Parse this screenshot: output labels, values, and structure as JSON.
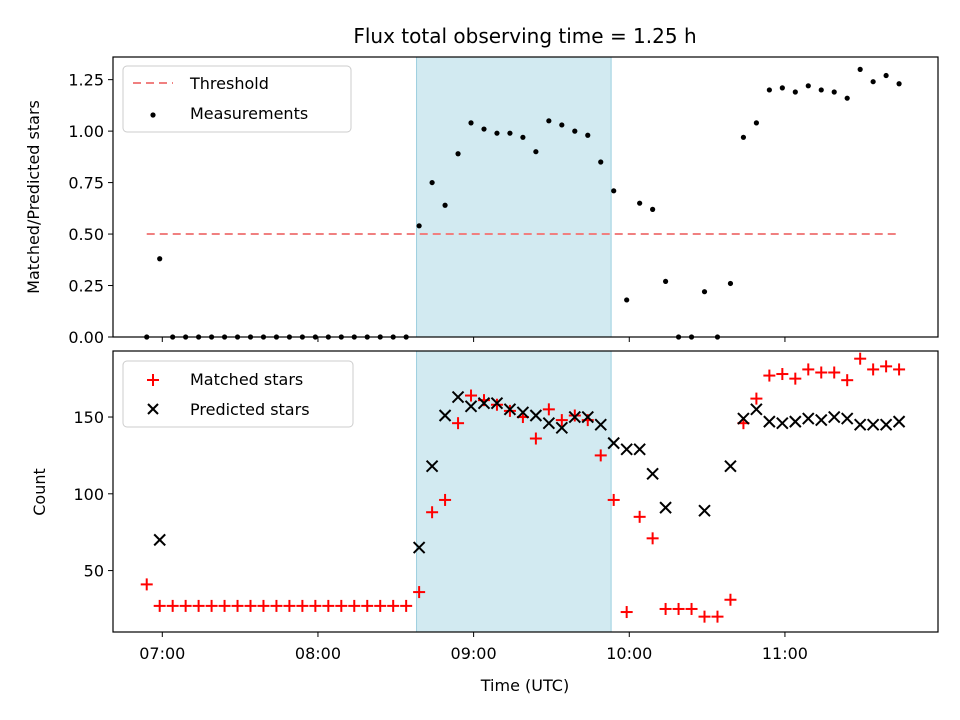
{
  "chart_data": [
    {
      "type": "scatter",
      "title": "Flux total observing time = 1.25 h",
      "xlabel": "",
      "ylabel": "Matched/Predicted stars",
      "ylim": [
        0,
        1.36
      ],
      "yticks": [
        "0.00",
        "0.25",
        "0.50",
        "0.75",
        "1.00",
        "1.25"
      ],
      "ytick_values": [
        0,
        0.25,
        0.5,
        0.75,
        1.0,
        1.25
      ],
      "xlim": [
        "06:41",
        "11:59"
      ],
      "xticks": [
        "07:00",
        "08:00",
        "09:00",
        "10:00",
        "11:00"
      ],
      "shaded_region": {
        "start": "08:38",
        "end": "09:53",
        "color": "#add8e6"
      },
      "legend": {
        "position": "upper-left"
      },
      "series": [
        {
          "name": "Threshold",
          "kind": "dashed-line",
          "color": "#f08080",
          "x": [
            "06:54",
            "11:44"
          ],
          "values": [
            0.5,
            0.5
          ]
        },
        {
          "name": "Measurements",
          "kind": "points",
          "color": "#000000",
          "x": [
            "06:54",
            "06:59",
            "07:04",
            "07:09",
            "07:14",
            "07:19",
            "07:24",
            "07:29",
            "07:34",
            "07:39",
            "07:44",
            "07:49",
            "07:54",
            "07:59",
            "08:04",
            "08:09",
            "08:14",
            "08:19",
            "08:24",
            "08:29",
            "08:34",
            "08:39",
            "08:44",
            "08:49",
            "08:54",
            "08:59",
            "09:04",
            "09:09",
            "09:14",
            "09:19",
            "09:24",
            "09:29",
            "09:34",
            "09:39",
            "09:44",
            "09:49",
            "09:54",
            "09:59",
            "10:04",
            "10:09",
            "10:14",
            "10:19",
            "10:24",
            "10:29",
            "10:34",
            "10:39",
            "10:44",
            "10:49",
            "10:54",
            "10:59",
            "11:04",
            "11:09",
            "11:14",
            "11:19",
            "11:24",
            "11:29",
            "11:34",
            "11:39",
            "11:44"
          ],
          "values": [
            0.0,
            0.38,
            0.0,
            0.0,
            0.0,
            0.0,
            0.0,
            0.0,
            0.0,
            0.0,
            0.0,
            0.0,
            0.0,
            0.0,
            0.0,
            0.0,
            0.0,
            0.0,
            0.0,
            0.0,
            0.0,
            0.54,
            0.75,
            0.64,
            0.89,
            1.04,
            1.01,
            0.99,
            0.99,
            0.97,
            0.9,
            1.05,
            1.03,
            1.0,
            0.98,
            0.85,
            0.71,
            0.18,
            0.65,
            0.62,
            0.27,
            0.0,
            0.0,
            0.22,
            0.0,
            0.26,
            0.97,
            1.04,
            1.2,
            1.21,
            1.19,
            1.22,
            1.2,
            1.19,
            1.16,
            1.3,
            1.24,
            1.27,
            1.23
          ]
        }
      ]
    },
    {
      "type": "scatter",
      "title": "",
      "xlabel": "Time (UTC)",
      "ylabel": "Count",
      "ylim": [
        10,
        193
      ],
      "yticks": [
        "50",
        "100",
        "150"
      ],
      "ytick_values": [
        50,
        100,
        150
      ],
      "xlim": [
        "06:41",
        "11:59"
      ],
      "xticks": [
        "07:00",
        "08:00",
        "09:00",
        "10:00",
        "11:00"
      ],
      "shaded_region": {
        "start": "08:38",
        "end": "09:53",
        "color": "#add8e6"
      },
      "legend": {
        "position": "upper-left"
      },
      "series": [
        {
          "name": "Matched stars",
          "kind": "plus",
          "color": "#ff0000",
          "x": [
            "06:54",
            "06:59",
            "07:04",
            "07:09",
            "07:14",
            "07:19",
            "07:24",
            "07:29",
            "07:34",
            "07:39",
            "07:44",
            "07:49",
            "07:54",
            "07:59",
            "08:04",
            "08:09",
            "08:14",
            "08:19",
            "08:24",
            "08:29",
            "08:34",
            "08:39",
            "08:44",
            "08:49",
            "08:54",
            "08:59",
            "09:04",
            "09:09",
            "09:14",
            "09:19",
            "09:24",
            "09:29",
            "09:34",
            "09:39",
            "09:44",
            "09:49",
            "09:54",
            "09:59",
            "10:04",
            "10:09",
            "10:14",
            "10:19",
            "10:24",
            "10:29",
            "10:34",
            "10:39",
            "10:44",
            "10:49",
            "10:54",
            "10:59",
            "11:04",
            "11:09",
            "11:14",
            "11:19",
            "11:24",
            "11:29",
            "11:34",
            "11:39",
            "11:44"
          ],
          "values": [
            41,
            27,
            27,
            27,
            27,
            27,
            27,
            27,
            27,
            27,
            27,
            27,
            27,
            27,
            27,
            27,
            27,
            27,
            27,
            27,
            27,
            36,
            88,
            96,
            146,
            164,
            161,
            158,
            154,
            150,
            136,
            155,
            148,
            151,
            148,
            125,
            96,
            23,
            85,
            71,
            25,
            25,
            25,
            20,
            20,
            31,
            146,
            162,
            177,
            178,
            175,
            181,
            179,
            179,
            174,
            188,
            181,
            183,
            181
          ]
        },
        {
          "name": "Predicted stars",
          "kind": "cross",
          "color": "#000000",
          "x": [
            "06:59",
            "08:39",
            "08:44",
            "08:49",
            "08:54",
            "08:59",
            "09:04",
            "09:09",
            "09:14",
            "09:19",
            "09:24",
            "09:29",
            "09:34",
            "09:39",
            "09:44",
            "09:49",
            "09:54",
            "09:59",
            "10:04",
            "10:09",
            "10:14",
            "10:29",
            "10:39",
            "10:44",
            "10:49",
            "10:54",
            "10:59",
            "11:04",
            "11:09",
            "11:14",
            "11:19",
            "11:24",
            "11:29",
            "11:34",
            "11:39",
            "11:44"
          ],
          "values": [
            70,
            65,
            118,
            151,
            163,
            157,
            159,
            159,
            155,
            153,
            151,
            146,
            143,
            150,
            150,
            145,
            133,
            129,
            129,
            113,
            91,
            89,
            118,
            149,
            155,
            147,
            146,
            147,
            149,
            148,
            150,
            149,
            145,
            145,
            145,
            147
          ]
        }
      ]
    }
  ]
}
